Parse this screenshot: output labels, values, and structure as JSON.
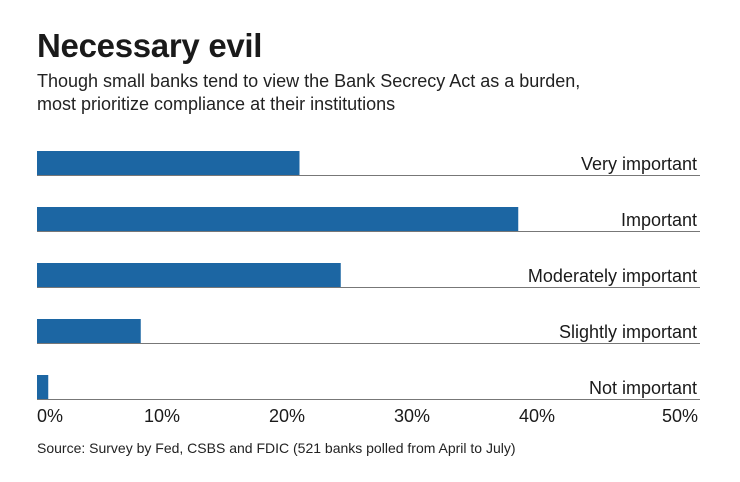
{
  "title": "Necessary evil",
  "subtitle_lines": [
    "Though small banks tend to view the Bank Secrecy Act as a burden,",
    "most prioritize compliance at their institutions"
  ],
  "source": "Source: Survey by Fed, CSBS and FDIC (521 banks polled from April to July)",
  "colors": {
    "bar": "#1c66a3",
    "rule": "#777777",
    "text": "#1a1a1a"
  },
  "chart_data": {
    "type": "bar",
    "orientation": "horizontal",
    "categories": [
      "Very important",
      "Important",
      "Moderately important",
      "Slightly important",
      "Not important"
    ],
    "values": [
      21,
      38.5,
      24.3,
      8.3,
      0.9
    ],
    "xlim": [
      0,
      50
    ],
    "xticks": [
      0,
      10,
      20,
      30,
      40,
      50
    ],
    "xtick_labels": [
      "0%",
      "10%",
      "20%",
      "30%",
      "40%",
      "50%"
    ],
    "xlabel": "",
    "ylabel": "",
    "unit": "%"
  }
}
